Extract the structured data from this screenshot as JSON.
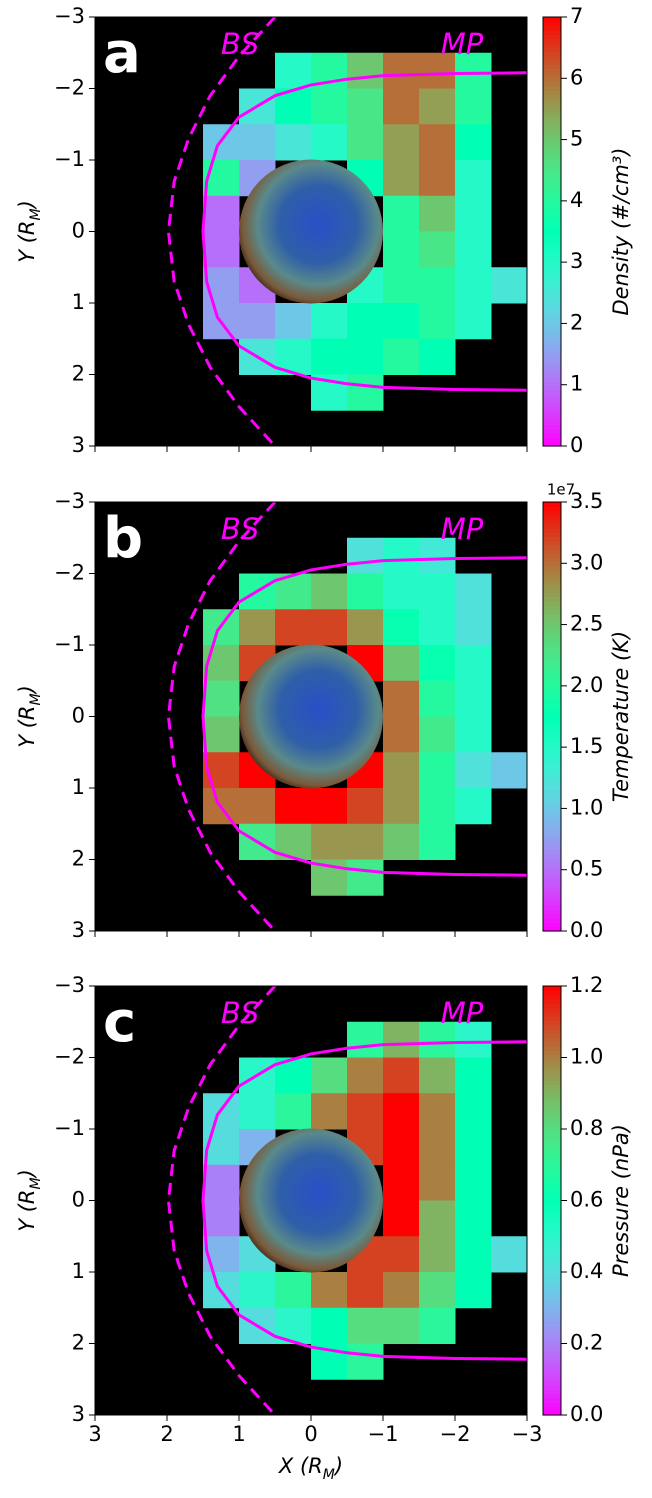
{
  "chart_data": [
    {
      "type": "heatmap",
      "panel_label": "a",
      "colormap": "rainbow",
      "x": [
        2.75,
        2.25,
        1.75,
        1.25,
        0.75,
        0.25,
        -0.25,
        -0.75,
        -1.25,
        -1.75,
        -2.25,
        -2.75
      ],
      "y": [
        -2.75,
        -2.25,
        -1.75,
        -1.25,
        -0.75,
        -0.25,
        0.25,
        0.75,
        1.25,
        1.75,
        2.25,
        2.75
      ],
      "values": [
        [
          null,
          null,
          null,
          null,
          null,
          null,
          null,
          null,
          null,
          null,
          null,
          null
        ],
        [
          null,
          null,
          null,
          null,
          null,
          3,
          4,
          5,
          6,
          6,
          4,
          null
        ],
        [
          null,
          null,
          null,
          null,
          2.5,
          3.5,
          4,
          4.5,
          6,
          5.5,
          4,
          null
        ],
        [
          null,
          null,
          null,
          2,
          2,
          2.5,
          3,
          4.5,
          5.5,
          6,
          3.5,
          null
        ],
        [
          null,
          null,
          null,
          4,
          1.5,
          null,
          null,
          3.5,
          5.5,
          6,
          3,
          null
        ],
        [
          null,
          null,
          null,
          1,
          null,
          null,
          null,
          null,
          4,
          5,
          3,
          null
        ],
        [
          null,
          null,
          null,
          1,
          null,
          null,
          null,
          null,
          4,
          4.5,
          3,
          null
        ],
        [
          null,
          null,
          null,
          1.5,
          1,
          null,
          null,
          3,
          4,
          4,
          3,
          2.5
        ],
        [
          null,
          null,
          null,
          1.5,
          1.5,
          2,
          3,
          3.5,
          3.5,
          4,
          3,
          null
        ],
        [
          null,
          null,
          null,
          null,
          2.5,
          3,
          3.5,
          3.5,
          4,
          3.5,
          null,
          null
        ],
        [
          null,
          null,
          null,
          null,
          null,
          null,
          3,
          4,
          null,
          null,
          null,
          null
        ],
        [
          null,
          null,
          null,
          null,
          null,
          null,
          null,
          null,
          null,
          null,
          null,
          null
        ]
      ],
      "xlim": [
        3,
        -3
      ],
      "ylim": [
        3,
        -3
      ],
      "xticks": [
        3,
        2,
        1,
        0,
        {
          "value": -1,
          "label": "−1"
        },
        {
          "value": -2,
          "label": "−2"
        },
        {
          "value": -3,
          "label": "−3"
        }
      ],
      "x_tick_labels_shown": false,
      "yticks": [
        {
          "value": -3,
          "label": "−3"
        },
        {
          "value": -2,
          "label": "−2"
        },
        {
          "value": -1,
          "label": "−1"
        },
        0,
        1,
        2,
        3
      ],
      "ylabel": [
        "Y (R",
        "M",
        ")"
      ],
      "clim": [
        0,
        7
      ],
      "cticks": [
        0,
        1,
        2,
        3,
        4,
        5,
        6,
        7
      ],
      "clabel": "Density (#/cm³)",
      "series": [
        {
          "name": "BS",
          "color": "#ff00ff",
          "style": "dashed",
          "x": [
            0.5,
            1.0,
            1.4,
            1.7,
            1.9,
            1.98,
            1.9,
            1.7,
            1.4,
            1.0,
            0.5
          ],
          "y": [
            -3,
            -2.45,
            -1.9,
            -1.3,
            -0.7,
            0,
            0.7,
            1.3,
            1.9,
            2.45,
            3
          ]
        },
        {
          "name": "MP",
          "color": "#ff00ff",
          "style": "solid",
          "x": [
            -3,
            -2,
            -1,
            -0.5,
            0,
            0.5,
            1,
            1.3,
            1.45,
            1.5,
            1.45,
            1.3,
            1,
            0.5,
            0,
            -0.5,
            -1,
            -2,
            -3
          ],
          "y": [
            -2.22,
            -2.21,
            -2.18,
            -2.13,
            -2.05,
            -1.9,
            -1.6,
            -1.2,
            -0.7,
            0,
            0.7,
            1.2,
            1.6,
            1.9,
            2.05,
            2.13,
            2.18,
            2.21,
            2.22
          ]
        }
      ]
    },
    {
      "type": "heatmap",
      "panel_label": "b",
      "colormap": "rainbow",
      "x": [
        2.75,
        2.25,
        1.75,
        1.25,
        0.75,
        0.25,
        -0.25,
        -0.75,
        -1.25,
        -1.75,
        -2.25,
        -2.75
      ],
      "y": [
        -2.75,
        -2.25,
        -1.75,
        -1.25,
        -0.75,
        -0.25,
        0.25,
        0.75,
        1.25,
        1.75,
        2.25,
        2.75
      ],
      "values": [
        [
          null,
          null,
          null,
          null,
          null,
          null,
          null,
          null,
          null,
          null,
          null,
          null
        ],
        [
          null,
          null,
          null,
          null,
          null,
          null,
          null,
          1.2,
          1.5,
          1.3,
          null,
          null
        ],
        [
          null,
          null,
          null,
          null,
          2.0,
          2.2,
          2.5,
          2.0,
          1.5,
          1.5,
          1.2,
          null
        ],
        [
          null,
          null,
          null,
          2.2,
          2.8,
          3.2,
          3.2,
          2.8,
          1.8,
          1.5,
          1.2,
          null
        ],
        [
          null,
          null,
          null,
          2.5,
          3.2,
          null,
          null,
          3.5,
          2.5,
          1.8,
          1.5,
          null
        ],
        [
          null,
          null,
          null,
          2.3,
          null,
          null,
          null,
          null,
          3.0,
          2.0,
          1.5,
          null
        ],
        [
          null,
          null,
          null,
          2.5,
          null,
          null,
          null,
          null,
          3.0,
          2.2,
          1.5,
          null
        ],
        [
          null,
          null,
          null,
          3.2,
          3.5,
          null,
          null,
          3.5,
          2.8,
          2.0,
          1.2,
          1.0
        ],
        [
          null,
          null,
          null,
          3.0,
          3.0,
          3.5,
          3.5,
          3.2,
          2.8,
          2.0,
          1.5,
          null
        ],
        [
          null,
          null,
          null,
          null,
          2.2,
          2.5,
          2.8,
          2.8,
          2.5,
          2.0,
          null,
          null
        ],
        [
          null,
          null,
          null,
          null,
          null,
          null,
          2.5,
          2.2,
          null,
          null,
          null,
          null
        ],
        [
          null,
          null,
          null,
          null,
          null,
          null,
          null,
          null,
          null,
          null,
          null,
          null
        ]
      ],
      "xlim": [
        3,
        -3
      ],
      "ylim": [
        3,
        -3
      ],
      "xticks": [
        3,
        2,
        1,
        0,
        {
          "value": -1,
          "label": "−1"
        },
        {
          "value": -2,
          "label": "−2"
        },
        {
          "value": -3,
          "label": "−3"
        }
      ],
      "x_tick_labels_shown": false,
      "yticks": [
        {
          "value": -3,
          "label": "−3"
        },
        {
          "value": -2,
          "label": "−2"
        },
        {
          "value": -1,
          "label": "−1"
        },
        0,
        1,
        2,
        3
      ],
      "ylabel": [
        "Y (R",
        "M",
        ")"
      ],
      "clim": [
        0,
        3.5
      ],
      "cticks": [
        {
          "value": 0,
          "label": "0.0"
        },
        0.5,
        {
          "value": 1,
          "label": "1.0"
        },
        1.5,
        {
          "value": 2,
          "label": "2.0"
        },
        2.5,
        {
          "value": 3,
          "label": "3.0"
        },
        3.5
      ],
      "colorbar_offset": "1e7",
      "clabel": "Temperature (K)",
      "series": [
        {
          "name": "BS",
          "color": "#ff00ff",
          "style": "dashed",
          "x": [
            0.5,
            1.0,
            1.4,
            1.7,
            1.9,
            1.98,
            1.9,
            1.7,
            1.4,
            1.0,
            0.5
          ],
          "y": [
            -3,
            -2.45,
            -1.9,
            -1.3,
            -0.7,
            0,
            0.7,
            1.3,
            1.9,
            2.45,
            3
          ]
        },
        {
          "name": "MP",
          "color": "#ff00ff",
          "style": "solid",
          "x": [
            -3,
            -2,
            -1,
            -0.5,
            0,
            0.5,
            1,
            1.3,
            1.45,
            1.5,
            1.45,
            1.3,
            1,
            0.5,
            0,
            -0.5,
            -1,
            -2,
            -3
          ],
          "y": [
            -2.22,
            -2.21,
            -2.18,
            -2.13,
            -2.05,
            -1.9,
            -1.6,
            -1.2,
            -0.7,
            0,
            0.7,
            1.2,
            1.6,
            1.9,
            2.05,
            2.13,
            2.18,
            2.21,
            2.22
          ]
        }
      ]
    },
    {
      "type": "heatmap",
      "panel_label": "c",
      "colormap": "rainbow",
      "x": [
        2.75,
        2.25,
        1.75,
        1.25,
        0.75,
        0.25,
        -0.25,
        -0.75,
        -1.25,
        -1.75,
        -2.25,
        -2.75
      ],
      "y": [
        -2.75,
        -2.25,
        -1.75,
        -1.25,
        -0.75,
        -0.25,
        0.25,
        0.75,
        1.25,
        1.75,
        2.25,
        2.75
      ],
      "values": [
        [
          null,
          null,
          null,
          null,
          null,
          null,
          null,
          null,
          null,
          null,
          null,
          null
        ],
        [
          null,
          null,
          null,
          null,
          null,
          null,
          null,
          0.7,
          0.9,
          0.7,
          0.5,
          null
        ],
        [
          null,
          null,
          null,
          null,
          0.5,
          0.6,
          0.8,
          1.0,
          1.1,
          0.9,
          0.6,
          null
        ],
        [
          null,
          null,
          null,
          0.4,
          0.5,
          0.7,
          1.0,
          1.1,
          1.2,
          1.0,
          0.6,
          null
        ],
        [
          null,
          null,
          null,
          0.4,
          0.3,
          null,
          null,
          1.1,
          1.2,
          1.0,
          0.6,
          null
        ],
        [
          null,
          null,
          null,
          0.2,
          null,
          null,
          null,
          null,
          1.2,
          1.0,
          0.6,
          null
        ],
        [
          null,
          null,
          null,
          0.2,
          null,
          null,
          null,
          null,
          1.2,
          0.9,
          0.6,
          null
        ],
        [
          null,
          null,
          null,
          0.3,
          0.4,
          null,
          null,
          1.1,
          1.1,
          0.9,
          0.6,
          0.4
        ],
        [
          null,
          null,
          null,
          0.4,
          0.5,
          0.7,
          1.0,
          1.1,
          1.0,
          0.8,
          0.6,
          null
        ],
        [
          null,
          null,
          null,
          null,
          0.4,
          0.5,
          0.6,
          0.8,
          0.8,
          0.7,
          null,
          null
        ],
        [
          null,
          null,
          null,
          null,
          null,
          null,
          0.6,
          0.7,
          null,
          null,
          null,
          null
        ],
        [
          null,
          null,
          null,
          null,
          null,
          null,
          null,
          null,
          null,
          null,
          null,
          null
        ]
      ],
      "xlim": [
        3,
        -3
      ],
      "ylim": [
        3,
        -3
      ],
      "xticks": [
        3,
        2,
        1,
        0,
        {
          "value": -1,
          "label": "−1"
        },
        {
          "value": -2,
          "label": "−2"
        },
        {
          "value": -3,
          "label": "−3"
        }
      ],
      "x_tick_labels_shown": true,
      "xlabel": [
        "X (R",
        "M",
        ")"
      ],
      "yticks": [
        {
          "value": -3,
          "label": "−3"
        },
        {
          "value": -2,
          "label": "−2"
        },
        {
          "value": -1,
          "label": "−1"
        },
        0,
        1,
        2,
        3
      ],
      "ylabel": [
        "Y (R",
        "M",
        ")"
      ],
      "clim": [
        0,
        1.2
      ],
      "cticks": [
        {
          "value": 0,
          "label": "0.0"
        },
        0.2,
        0.4,
        0.6,
        0.8,
        {
          "value": 1,
          "label": "1.0"
        },
        1.2
      ],
      "clabel": "Pressure (nPa)",
      "series": [
        {
          "name": "BS",
          "color": "#ff00ff",
          "style": "dashed",
          "x": [
            0.5,
            1.0,
            1.4,
            1.7,
            1.9,
            1.98,
            1.9,
            1.7,
            1.4,
            1.0,
            0.5
          ],
          "y": [
            -3,
            -2.45,
            -1.9,
            -1.3,
            -0.7,
            0,
            0.7,
            1.3,
            1.9,
            2.45,
            3
          ]
        },
        {
          "name": "MP",
          "color": "#ff00ff",
          "style": "solid",
          "x": [
            -3,
            -2,
            -1,
            -0.5,
            0,
            0.5,
            1,
            1.3,
            1.45,
            1.5,
            1.45,
            1.3,
            1,
            0.5,
            0,
            -0.5,
            -1,
            -2,
            -3
          ],
          "y": [
            -2.22,
            -2.21,
            -2.18,
            -2.13,
            -2.05,
            -1.9,
            -1.6,
            -1.2,
            -0.7,
            0,
            0.7,
            1.2,
            1.6,
            1.9,
            2.05,
            2.13,
            2.18,
            2.21,
            2.22
          ]
        }
      ]
    }
  ]
}
